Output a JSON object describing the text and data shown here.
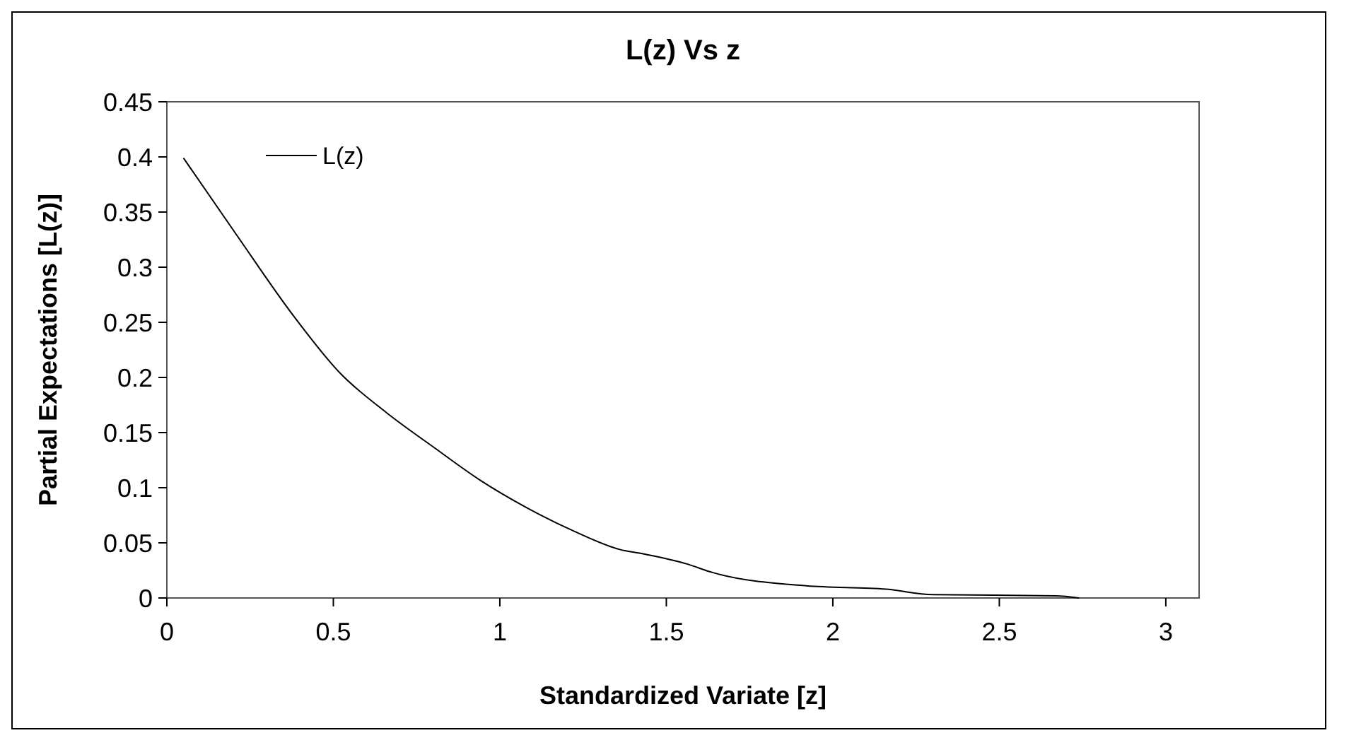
{
  "chart_data": {
    "type": "line",
    "title": "L(z) Vs z",
    "xlabel": "Standardized Variate [z]",
    "ylabel": "Partial Expectations [L(z)]",
    "xlim": [
      0,
      3.1
    ],
    "xticks": [
      0,
      0.5,
      1,
      1.5,
      2,
      2.5,
      3
    ],
    "ylim": [
      0,
      0.45
    ],
    "yticks": [
      0,
      0.05,
      0.1,
      0.15,
      0.2,
      0.25,
      0.3,
      0.35,
      0.4,
      0.45
    ],
    "grid": false,
    "legend": "top left",
    "marker": "none",
    "line_style": "solid",
    "series": [
      {
        "name": "L(z)",
        "color": "#000000",
        "x": [
          0.05,
          0.21,
          0.38,
          0.52,
          0.66,
          0.8,
          0.94,
          1.08,
          1.22,
          1.36,
          1.43,
          1.56,
          1.64,
          1.92,
          2.16,
          2.3,
          2.67,
          2.74
        ],
        "values": [
          0.399,
          0.329,
          0.256,
          0.204,
          0.168,
          0.137,
          0.107,
          0.082,
          0.061,
          0.044,
          0.04,
          0.031,
          0.023,
          0.011,
          0.008,
          0.003,
          0.002,
          0
        ]
      }
    ]
  }
}
